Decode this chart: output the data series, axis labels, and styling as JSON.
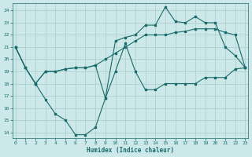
{
  "xlabel": "Humidex (Indice chaleur)",
  "bg_color": "#cce8e8",
  "grid_color": "#aacccc",
  "line_color": "#1a6b6b",
  "xlim": [
    -0.3,
    23.3
  ],
  "ylim": [
    13.5,
    24.6
  ],
  "yticks": [
    14,
    15,
    16,
    17,
    18,
    19,
    20,
    21,
    22,
    23,
    24
  ],
  "xticks": [
    0,
    1,
    2,
    3,
    4,
    5,
    6,
    7,
    8,
    9,
    10,
    11,
    12,
    13,
    14,
    15,
    16,
    17,
    18,
    19,
    20,
    21,
    22,
    23
  ],
  "series1_x": [
    0,
    1,
    2,
    3,
    4,
    5,
    6,
    7,
    8,
    9,
    10,
    11,
    12,
    13,
    14,
    15,
    16,
    17,
    18,
    19,
    20,
    21,
    22,
    23
  ],
  "series1_y": [
    21.0,
    19.3,
    18.0,
    16.7,
    15.5,
    15.0,
    13.8,
    13.8,
    14.4,
    16.8,
    19.0,
    21.3,
    19.0,
    17.5,
    17.5,
    18.0,
    18.0,
    18.0,
    18.0,
    18.5,
    18.5,
    18.5,
    19.2,
    19.3
  ],
  "series2_x": [
    0,
    1,
    2,
    3,
    4,
    5,
    6,
    7,
    8,
    9,
    10,
    11,
    12,
    13,
    14,
    15,
    16,
    17,
    18,
    19,
    20,
    21,
    22,
    23
  ],
  "series2_y": [
    21.0,
    19.3,
    18.0,
    19.0,
    19.0,
    19.2,
    19.3,
    19.3,
    19.5,
    20.0,
    20.5,
    21.0,
    21.5,
    22.0,
    22.0,
    22.0,
    22.2,
    22.3,
    22.5,
    22.5,
    22.5,
    22.2,
    22.0,
    19.3
  ],
  "series3_x": [
    0,
    1,
    2,
    3,
    4,
    5,
    6,
    7,
    8,
    9,
    10,
    11,
    12,
    13,
    14,
    15,
    16,
    17,
    18,
    19,
    20,
    21,
    22,
    23
  ],
  "series3_y": [
    21.0,
    19.3,
    18.0,
    19.0,
    19.0,
    19.2,
    19.3,
    19.3,
    19.5,
    16.8,
    21.5,
    21.8,
    22.0,
    22.8,
    22.8,
    24.3,
    23.1,
    23.0,
    23.5,
    23.0,
    23.0,
    21.0,
    20.3,
    19.3
  ]
}
